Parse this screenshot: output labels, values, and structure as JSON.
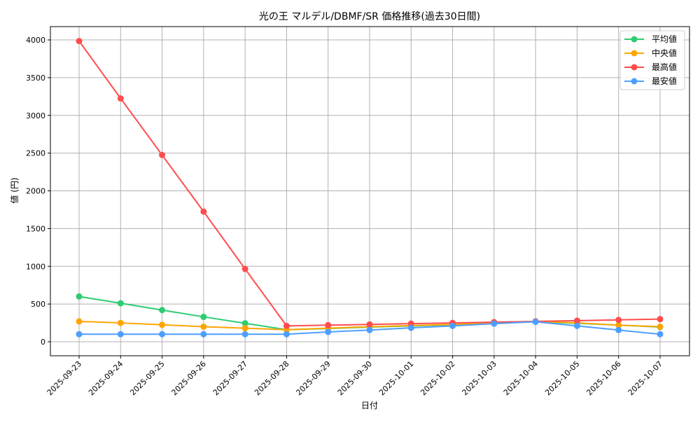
{
  "chart_data": {
    "type": "line",
    "title": "光の王 マルデル/DBMF/SR 価格推移(過去30日間)",
    "xlabel": "日付",
    "ylabel": "値 (円)",
    "ylim": [
      -150,
      4180
    ],
    "yticks": [
      0,
      500,
      1000,
      1500,
      2000,
      2500,
      3000,
      3500,
      4000
    ],
    "grid": true,
    "legend_position": "top-right",
    "categories": [
      "2025-09-23",
      "2025-09-24",
      "2025-09-25",
      "2025-09-26",
      "2025-09-27",
      "2025-09-28",
      "2025-09-29",
      "2025-09-30",
      "2025-10-01",
      "2025-10-02",
      "2025-10-03",
      "2025-10-04",
      "2025-10-05",
      "2025-10-06",
      "2025-10-07"
    ],
    "series": [
      {
        "name": "平均値",
        "color": "#2ecc71",
        "values": [
          600,
          510,
          420,
          330,
          245,
          160,
          175,
          195,
          210,
          225,
          245,
          265,
          245,
          220,
          195
        ]
      },
      {
        "name": "中央値",
        "color": "#ffa500",
        "values": [
          270,
          250,
          225,
          200,
          180,
          160,
          180,
          200,
          215,
          230,
          250,
          270,
          250,
          220,
          200
        ]
      },
      {
        "name": "最高値",
        "color": "#ff4d4d",
        "values": [
          3985,
          3225,
          2475,
          1725,
          965,
          210,
          220,
          230,
          240,
          250,
          260,
          270,
          280,
          290,
          300
        ]
      },
      {
        "name": "最安値",
        "color": "#4d9fff",
        "values": [
          100,
          100,
          100,
          100,
          100,
          100,
          130,
          155,
          185,
          210,
          240,
          265,
          210,
          155,
          100
        ]
      }
    ]
  }
}
